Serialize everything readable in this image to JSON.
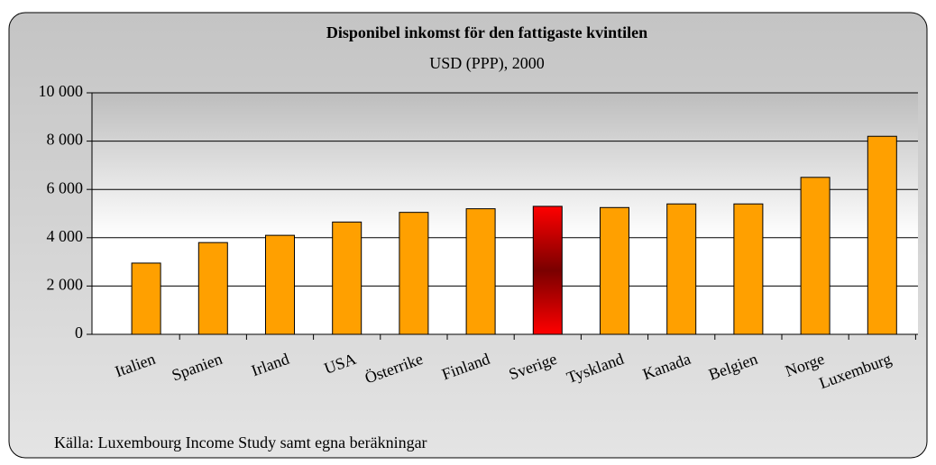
{
  "chart_data": {
    "type": "bar",
    "title": "Disponibel inkomst för den fattigaste kvintilen",
    "subtitle": "USD (PPP), 2000",
    "source": "Källa: Luxembourg Income Study samt egna beräkningar",
    "categories": [
      "Italien",
      "Spanien",
      "Irland",
      "USA",
      "Österrike",
      "Finland",
      "Sverige",
      "Tyskland",
      "Kanada",
      "Belgien",
      "Norge",
      "Luxemburg"
    ],
    "values": [
      2950,
      3800,
      4100,
      4650,
      5050,
      5200,
      5300,
      5250,
      5400,
      5400,
      6500,
      8200
    ],
    "color": "#ffa000",
    "colors": [
      "#ffa000",
      "#ffa000",
      "#ffa000",
      "#ffa000",
      "#ffa000",
      "#ffa000",
      "#ff0000",
      "#ffa000",
      "#ffa000",
      "#ffa000",
      "#ffa000",
      "#ffa000"
    ],
    "ylim": [
      0,
      10000
    ],
    "yticks": [
      0,
      {
        "value": 2000,
        "label": "2 000"
      },
      {
        "value": 4000,
        "label": "4 000"
      },
      {
        "value": 6000,
        "label": "6 000"
      },
      {
        "value": 8000,
        "label": "8 000"
      },
      {
        "value": 10000,
        "label": "10 000"
      }
    ],
    "grid": true
  }
}
